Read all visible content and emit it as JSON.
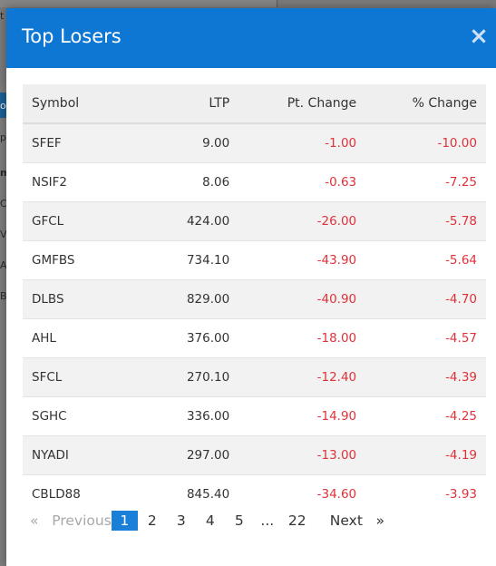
{
  "modal": {
    "title": "Top Losers",
    "close_label": "×"
  },
  "table": {
    "headers": {
      "symbol": "Symbol",
      "ltp": "LTP",
      "pt_change": "Pt. Change",
      "pct_change": "% Change"
    },
    "rows": [
      {
        "symbol": "SFEF",
        "ltp": "9.00",
        "pt_change": "-1.00",
        "pct_change": "-10.00"
      },
      {
        "symbol": "NSIF2",
        "ltp": "8.06",
        "pt_change": "-0.63",
        "pct_change": "-7.25"
      },
      {
        "symbol": "GFCL",
        "ltp": "424.00",
        "pt_change": "-26.00",
        "pct_change": "-5.78"
      },
      {
        "symbol": "GMFBS",
        "ltp": "734.10",
        "pt_change": "-43.90",
        "pct_change": "-5.64"
      },
      {
        "symbol": "DLBS",
        "ltp": "829.00",
        "pt_change": "-40.90",
        "pct_change": "-4.70"
      },
      {
        "symbol": "AHL",
        "ltp": "376.00",
        "pt_change": "-18.00",
        "pct_change": "-4.57"
      },
      {
        "symbol": "SFCL",
        "ltp": "270.10",
        "pt_change": "-12.40",
        "pct_change": "-4.39"
      },
      {
        "symbol": "SGHC",
        "ltp": "336.00",
        "pt_change": "-14.90",
        "pct_change": "-4.25"
      },
      {
        "symbol": "NYADI",
        "ltp": "297.00",
        "pt_change": "-13.00",
        "pct_change": "-4.19"
      },
      {
        "symbol": "CBLD88",
        "ltp": "845.40",
        "pt_change": "-34.60",
        "pct_change": "-3.93"
      }
    ]
  },
  "pagination": {
    "prev_arrow": "«",
    "prev_label": "Previous",
    "pages": [
      "1",
      "2",
      "3",
      "4",
      "5"
    ],
    "ellipsis": "...",
    "last_page": "22",
    "next_label": "Next",
    "next_arrow": "»",
    "current_page": "1"
  },
  "background": {
    "letters": [
      "t",
      "o",
      "p",
      "m",
      "C",
      "V",
      "A",
      "B"
    ]
  },
  "colors": {
    "header_blue": "#0e77d3",
    "negative_red": "#e0323a",
    "active_page": "#1a7fd9"
  }
}
